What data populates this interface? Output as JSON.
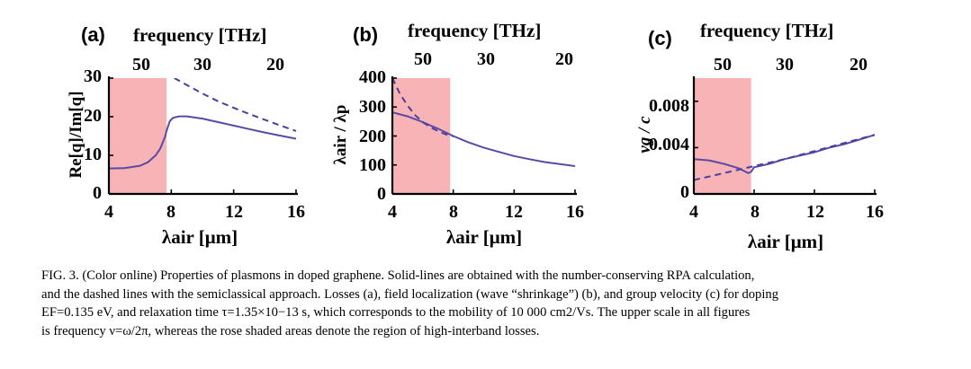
{
  "figure": {
    "colors": {
      "shade": "#f7b3b6",
      "solid": "#5a4aa6",
      "dashed": "#4a3f9e"
    },
    "panels": [
      {
        "letter": "(a)",
        "top_title": "frequency [THz]",
        "top_ticks": [
          "50",
          "30",
          "20"
        ],
        "x_ticks": [
          "4",
          "8",
          "12",
          "16"
        ],
        "y_ticks": [
          "0",
          "10",
          "20",
          "30"
        ],
        "xlabel": "λair [μm]",
        "ylabel": "Re[q]/Im[q]"
      },
      {
        "letter": "(b)",
        "top_title": "frequency [THz]",
        "top_ticks": [
          "50",
          "30",
          "20"
        ],
        "x_ticks": [
          "4",
          "8",
          "12",
          "16"
        ],
        "y_ticks": [
          "0",
          "100",
          "200",
          "300",
          "400"
        ],
        "xlabel": "λair [μm]",
        "ylabel": "λair / λp"
      },
      {
        "letter": "(c)",
        "top_title": "frequency [THz]",
        "top_ticks": [
          "50",
          "30",
          "20"
        ],
        "x_ticks": [
          "4",
          "8",
          "12",
          "16"
        ],
        "y_ticks": [
          "0",
          "0.004",
          "0.008"
        ],
        "xlabel": "λair [μm]",
        "ylabel": "vg / c"
      }
    ]
  },
  "chart_data": [
    {
      "type": "line",
      "title": "",
      "xlabel": "λair [μm]",
      "ylabel": "Re[q]/Im[q]",
      "xlim": [
        4,
        16
      ],
      "ylim": [
        0,
        30
      ],
      "top_axis": {
        "label": "frequency [THz]",
        "ticks": [
          50,
          30,
          20
        ]
      },
      "shaded_region": {
        "x": [
          4,
          7.7
        ]
      },
      "series": [
        {
          "style": "solid",
          "x": [
            4,
            5,
            6,
            6.5,
            7,
            7.3,
            7.6,
            7.7,
            7.9,
            8.1,
            8.5,
            9,
            10,
            11,
            12,
            13,
            14,
            15,
            16
          ],
          "y": [
            6.6,
            6.7,
            7.3,
            8.2,
            10.0,
            11.8,
            14.8,
            16.4,
            18.8,
            19.7,
            20.1,
            20.1,
            19.5,
            18.6,
            17.7,
            16.8,
            15.9,
            15.1,
            14.3
          ]
        },
        {
          "style": "dashed",
          "x": [
            8.2,
            9,
            10,
            11,
            12,
            13,
            14,
            15,
            16
          ],
          "y": [
            30,
            28.2,
            26.0,
            24.0,
            22.3,
            20.7,
            19.2,
            17.7,
            16.3
          ]
        }
      ]
    },
    {
      "type": "line",
      "title": "",
      "xlabel": "λair [μm]",
      "ylabel": "λair / λp",
      "xlim": [
        4,
        16
      ],
      "ylim": [
        0,
        400
      ],
      "top_axis": {
        "label": "frequency [THz]",
        "ticks": [
          50,
          30,
          20
        ]
      },
      "shaded_region": {
        "x": [
          4,
          7.8
        ]
      },
      "series": [
        {
          "style": "solid",
          "x": [
            4,
            5,
            6,
            7,
            8,
            9,
            10,
            11,
            12,
            13,
            14,
            15,
            16
          ],
          "y": [
            282,
            268,
            248,
            225,
            200,
            178,
            160,
            145,
            131,
            120,
            110,
            103,
            96
          ]
        },
        {
          "style": "dashed",
          "x": [
            4,
            4.5,
            5,
            5.5,
            6,
            6.5,
            7,
            7.5,
            8
          ],
          "y": [
            400,
            345,
            305,
            272,
            248,
            230,
            217,
            206,
            199
          ]
        }
      ]
    },
    {
      "type": "line",
      "title": "",
      "xlabel": "λair [μm]",
      "ylabel": "vg / c",
      "xlim": [
        4,
        16
      ],
      "ylim": [
        0,
        0.01
      ],
      "top_axis": {
        "label": "frequency [THz]",
        "ticks": [
          50,
          30,
          20
        ]
      },
      "shaded_region": {
        "x": [
          4,
          7.8
        ]
      },
      "series": [
        {
          "style": "solid",
          "x": [
            4,
            5,
            6,
            7,
            7.6,
            7.8,
            8,
            9,
            10,
            11,
            12,
            13,
            14,
            15,
            16
          ],
          "y": [
            0.003,
            0.0029,
            0.0026,
            0.0022,
            0.0018,
            0.0019,
            0.0023,
            0.0026,
            0.003,
            0.0033,
            0.0036,
            0.004,
            0.0043,
            0.0047,
            0.0051
          ]
        },
        {
          "style": "dashed",
          "x": [
            4,
            5,
            6,
            7,
            8,
            9,
            10,
            12,
            14,
            16
          ],
          "y": [
            0.0012,
            0.0015,
            0.0018,
            0.0021,
            0.0024,
            0.0027,
            0.003,
            0.0037,
            0.0044,
            0.0051
          ]
        }
      ]
    }
  ],
  "caption": {
    "label": "FIG. 3.",
    "line1": "(Color online) Properties of plasmons in doped graphene. Solid-lines are obtained with the number-conserving RPA calculation,",
    "line2": "and the dashed lines with the semiclassical approach. Losses (a), field localization (wave “shrinkage”) (b), and group velocity (c) for doping",
    "line3": "EF=0.135  eV, and relaxation time τ=1.35×10−13  s, which corresponds to the mobility of 10 000  cm2/Vs. The upper scale in all figures",
    "line4": "is frequency  ν=ω/2π, whereas the rose shaded areas denote the region of high-interband losses."
  }
}
